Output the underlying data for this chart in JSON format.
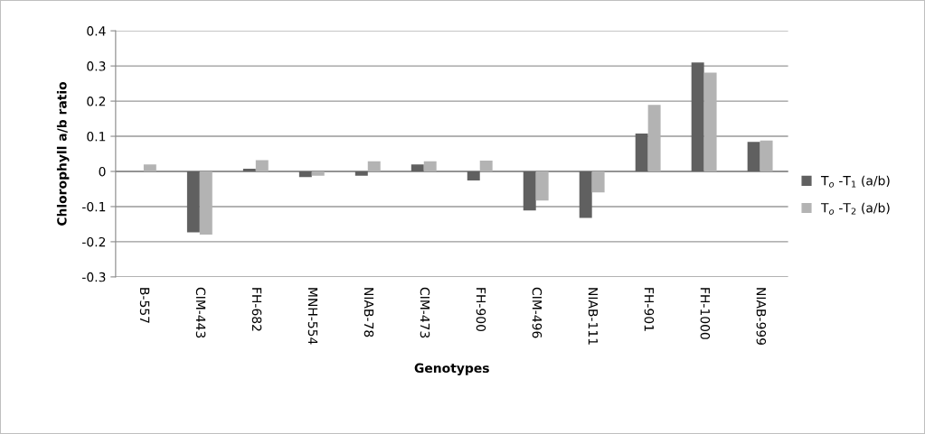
{
  "chart_data": {
    "type": "bar",
    "xlabel": "Genotypes",
    "ylabel": "Chlorophyll a/b ratio",
    "categories": [
      "B-557",
      "CIM-443",
      "FH-682",
      "MNH-554",
      "NIAB-78",
      "CIM-473",
      "FH-900",
      "CIM-496",
      "NIAB-111",
      "FH-901",
      "FH-1000",
      "NIAB-999"
    ],
    "series": [
      {
        "name": "T$_{o}$ -T$_{1}$ (a/b)",
        "color": "#606060",
        "values": [
          0,
          -0.173,
          0.008,
          -0.016,
          -0.012,
          0.02,
          -0.026,
          -0.111,
          -0.132,
          0.108,
          0.31,
          0.084
        ]
      },
      {
        "name": "T$_{o}$ -T$_{2}$ (a/b)",
        "color": "#b3b3b3",
        "values": [
          0.02,
          -0.18,
          0.032,
          -0.012,
          0.029,
          0.029,
          0.031,
          -0.083,
          -0.06,
          0.189,
          0.281,
          0.088
        ]
      }
    ],
    "ylim": [
      -0.3,
      0.4
    ],
    "yticks": [
      -0.3,
      -0.2,
      -0.1,
      0,
      0.1,
      0.2,
      0.3,
      0.4
    ],
    "grid": "y",
    "legend": "right"
  }
}
